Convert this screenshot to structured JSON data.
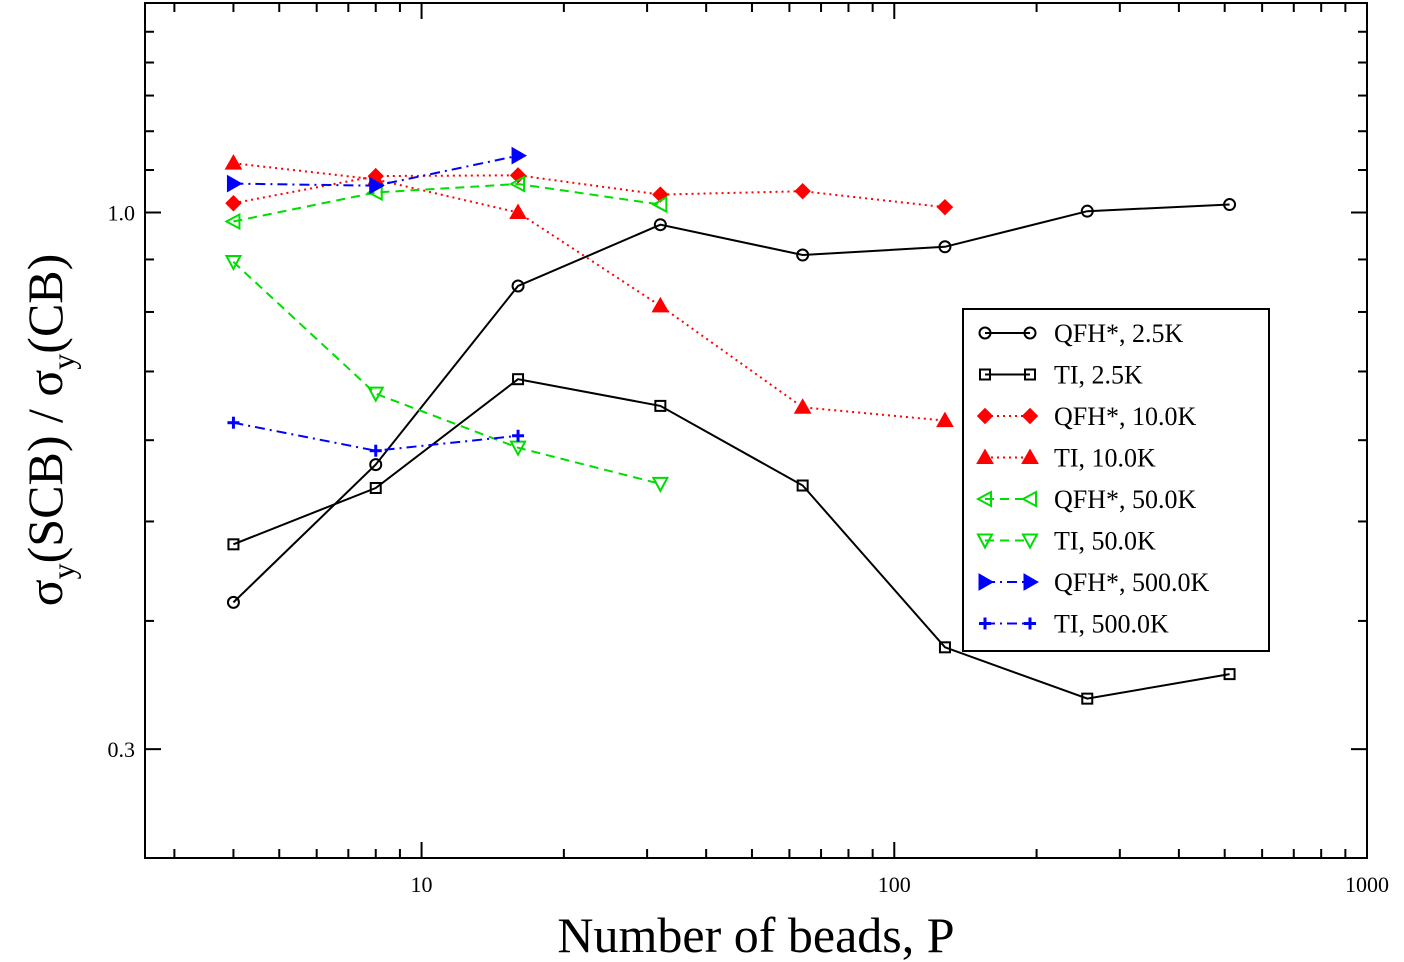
{
  "chart_data": {
    "type": "line",
    "title": "",
    "xlabel": "Number of beads, P",
    "ylabel": {
      "sigma": "σ",
      "sub1": "y",
      "mid": "(SCB) / ",
      "sub2": "y",
      "end": "(CB)"
    },
    "xscale": "log",
    "yscale": "log",
    "xlim": [
      2.6,
      1000
    ],
    "ylim": [
      0.235,
      1.6
    ],
    "xticks": [
      {
        "value": 10,
        "label": "10"
      },
      {
        "value": 100,
        "label": "100"
      },
      {
        "value": 1000,
        "label": "1000"
      }
    ],
    "yticks": [
      {
        "value": 1.0,
        "label": "1.0"
      },
      {
        "value": 0.3,
        "label": "0.3"
      }
    ],
    "grid": false,
    "legend_position": "center-right",
    "series": [
      {
        "name": "QFH*, 2.5K",
        "color": "#000000",
        "dash": "solid",
        "marker": "circle",
        "x": [
          4,
          8,
          16,
          32,
          64,
          128,
          256,
          512
        ],
        "y": [
          0.417,
          0.568,
          0.848,
          0.973,
          0.909,
          0.926,
          1.003,
          1.018
        ]
      },
      {
        "name": "TI, 2.5K",
        "color": "#000000",
        "dash": "solid",
        "marker": "square",
        "x": [
          4,
          8,
          16,
          32,
          64,
          128,
          256,
          512
        ],
        "y": [
          0.475,
          0.539,
          0.688,
          0.648,
          0.542,
          0.377,
          0.336,
          0.355
        ]
      },
      {
        "name": "QFH*, 10.0K",
        "color": "#ff0000",
        "dash": "dotted",
        "marker": "diamond",
        "x": [
          4,
          8,
          16,
          32,
          64,
          128
        ],
        "y": [
          1.021,
          1.085,
          1.087,
          1.041,
          1.049,
          1.012
        ]
      },
      {
        "name": "TI, 10.0K",
        "color": "#ff0000",
        "dash": "dotted",
        "marker": "triangle-up",
        "x": [
          4,
          8,
          16,
          32,
          64,
          128
        ],
        "y": [
          1.117,
          1.077,
          1.0,
          0.811,
          0.646,
          0.627
        ]
      },
      {
        "name": "QFH*, 50.0K",
        "color": "#00dd00",
        "dash": "dashed",
        "marker": "triangle-left",
        "x": [
          4,
          8,
          16,
          32
        ],
        "y": [
          0.98,
          1.046,
          1.066,
          1.018
        ]
      },
      {
        "name": "TI, 50.0K",
        "color": "#00dd00",
        "dash": "dashed",
        "marker": "triangle-down",
        "x": [
          4,
          8,
          16,
          32
        ],
        "y": [
          0.895,
          0.666,
          0.59,
          0.544
        ]
      },
      {
        "name": "QFH*, 500.0K",
        "color": "#0000ff",
        "dash": "dashdot",
        "marker": "triangle-right",
        "x": [
          4,
          8,
          16
        ],
        "y": [
          1.067,
          1.062,
          1.136
        ]
      },
      {
        "name": "TI, 500.0K",
        "color": "#0000ff",
        "dash": "dashdot",
        "marker": "plus",
        "x": [
          4,
          8,
          16
        ],
        "y": [
          0.624,
          0.586,
          0.606
        ]
      }
    ]
  }
}
